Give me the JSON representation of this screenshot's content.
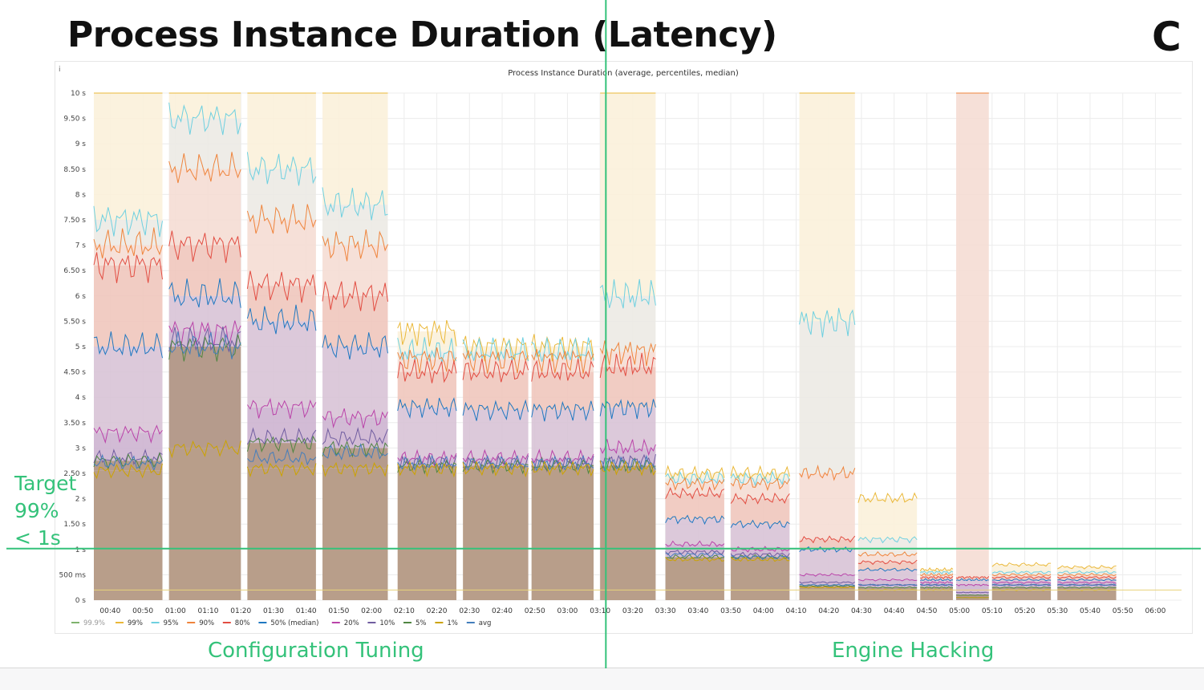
{
  "slide": {
    "title": "Process Instance Duration (Latency)",
    "logo_letter": "C",
    "accent_color": "#ff5a1f",
    "annotation_color": "#34c27a",
    "left_section_label": "Configuration Tuning",
    "right_section_label": "Engine Hacking",
    "target_lines": [
      "Target",
      "99%",
      "< 1s"
    ]
  },
  "chart_data": {
    "type": "area",
    "title": "Process Instance Duration (average, percentiles, median)",
    "panel_info_icon": "i",
    "y_unit": "s",
    "ylim": [
      0,
      10
    ],
    "y_ticks": [
      {
        "v": 10,
        "label": "10 s"
      },
      {
        "v": 9.5,
        "label": "9.50 s"
      },
      {
        "v": 9,
        "label": "9 s"
      },
      {
        "v": 8.5,
        "label": "8.50 s"
      },
      {
        "v": 8,
        "label": "8 s"
      },
      {
        "v": 7.5,
        "label": "7.50 s"
      },
      {
        "v": 7,
        "label": "7 s"
      },
      {
        "v": 6.5,
        "label": "6.50 s"
      },
      {
        "v": 6,
        "label": "6 s"
      },
      {
        "v": 5.5,
        "label": "5.50 s"
      },
      {
        "v": 5,
        "label": "5 s"
      },
      {
        "v": 4.5,
        "label": "4.50 s"
      },
      {
        "v": 4,
        "label": "4 s"
      },
      {
        "v": 3.5,
        "label": "3.50 s"
      },
      {
        "v": 3,
        "label": "3 s"
      },
      {
        "v": 2.5,
        "label": "2.50 s"
      },
      {
        "v": 2,
        "label": "2 s"
      },
      {
        "v": 1.5,
        "label": "1.50 s"
      },
      {
        "v": 1,
        "label": "1 s"
      },
      {
        "v": 0.5,
        "label": "500 ms"
      },
      {
        "v": 0,
        "label": "0 s"
      }
    ],
    "x_range": [
      "00:35",
      "06:08"
    ],
    "x_ticks": [
      "00:40",
      "00:50",
      "01:00",
      "01:10",
      "01:20",
      "01:30",
      "01:40",
      "01:50",
      "02:00",
      "02:10",
      "02:20",
      "02:30",
      "02:40",
      "02:50",
      "03:00",
      "03:10",
      "03:20",
      "03:30",
      "03:40",
      "03:50",
      "04:00",
      "04:10",
      "04:20",
      "04:30",
      "04:40",
      "04:50",
      "05:00",
      "05:10",
      "05:20",
      "05:30",
      "05:40",
      "05:50",
      "06:00"
    ],
    "grid": true,
    "legend_position": "bottom-left",
    "target_threshold": 1,
    "divider_time": "03:12",
    "series": [
      {
        "name": "99.9%",
        "color": "#7eb26d"
      },
      {
        "name": "99%",
        "color": "#eab839"
      },
      {
        "name": "95%",
        "color": "#6ed0e0"
      },
      {
        "name": "90%",
        "color": "#ef843c"
      },
      {
        "name": "80%",
        "color": "#e24d42"
      },
      {
        "name": "50% (median)",
        "color": "#1f78c1"
      },
      {
        "name": "20%",
        "color": "#ba43a9"
      },
      {
        "name": "10%",
        "color": "#705da0"
      },
      {
        "name": "5%",
        "color": "#508642"
      },
      {
        "name": "1%",
        "color": "#cca300"
      },
      {
        "name": "avg",
        "color": "#447ebc"
      }
    ],
    "segments": [
      {
        "start": "00:35",
        "end": "00:56",
        "levels": {
          "avg": 2.7,
          "1%": 2.55,
          "5%": 2.75,
          "10%": 2.8,
          "20%": 3.3,
          "50% (median)": 5.0,
          "80%": 6.6,
          "90%": 7.0,
          "95%": 7.5,
          "99%": 10
        }
      },
      {
        "start": "00:58",
        "end": "01:20",
        "levels": {
          "avg": 5.0,
          "1%": 3.0,
          "5%": 5.0,
          "10%": 5.1,
          "20%": 5.3,
          "50% (median)": 6.0,
          "80%": 7.0,
          "90%": 8.5,
          "95%": 9.5,
          "99%": 10
        }
      },
      {
        "start": "01:22",
        "end": "01:43",
        "levels": {
          "avg": 2.8,
          "1%": 2.6,
          "5%": 3.1,
          "10%": 3.2,
          "20%": 3.8,
          "50% (median)": 5.5,
          "80%": 6.2,
          "90%": 7.5,
          "95%": 8.5,
          "99%": 10
        }
      },
      {
        "start": "01:45",
        "end": "02:05",
        "levels": {
          "avg": 2.9,
          "1%": 2.6,
          "5%": 3.0,
          "10%": 3.2,
          "20%": 3.6,
          "50% (median)": 5.0,
          "80%": 6.0,
          "90%": 7.0,
          "95%": 7.8,
          "99%": 10
        }
      },
      {
        "start": "02:08",
        "end": "02:26",
        "levels": {
          "avg": 2.7,
          "1%": 2.6,
          "5%": 2.65,
          "10%": 2.7,
          "20%": 2.8,
          "50% (median)": 3.8,
          "80%": 4.5,
          "90%": 4.75,
          "95%": 4.9,
          "99%": 5.3
        }
      },
      {
        "start": "02:28",
        "end": "02:48",
        "levels": {
          "avg": 2.7,
          "1%": 2.6,
          "5%": 2.65,
          "10%": 2.7,
          "20%": 2.8,
          "50% (median)": 3.75,
          "80%": 4.5,
          "90%": 4.75,
          "95%": 4.9,
          "99%": 5.0
        }
      },
      {
        "start": "02:49",
        "end": "03:08",
        "levels": {
          "avg": 2.7,
          "1%": 2.6,
          "5%": 2.65,
          "10%": 2.7,
          "20%": 2.8,
          "50% (median)": 3.75,
          "80%": 4.5,
          "90%": 4.75,
          "95%": 4.9,
          "99%": 5.0
        }
      },
      {
        "start": "03:10",
        "end": "03:27",
        "levels": {
          "avg": 2.7,
          "1%": 2.6,
          "5%": 2.65,
          "10%": 2.75,
          "20%": 3.0,
          "50% (median)": 3.8,
          "80%": 4.6,
          "90%": 4.9,
          "95%": 6.0,
          "99%": 10
        }
      },
      {
        "start": "03:30",
        "end": "03:48",
        "levels": {
          "avg": 0.9,
          "1%": 0.8,
          "5%": 0.85,
          "10%": 0.95,
          "20%": 1.1,
          "50% (median)": 1.6,
          "80%": 2.1,
          "90%": 2.3,
          "95%": 2.4,
          "99%": 2.5
        }
      },
      {
        "start": "03:50",
        "end": "04:08",
        "levels": {
          "avg": 0.85,
          "1%": 0.8,
          "5%": 0.85,
          "10%": 0.9,
          "20%": 1.0,
          "50% (median)": 1.5,
          "80%": 2.0,
          "90%": 2.3,
          "95%": 2.4,
          "99%": 2.5
        }
      },
      {
        "start": "04:11",
        "end": "04:28",
        "levels": {
          "avg": 0.3,
          "1%": 0.25,
          "5%": 0.28,
          "10%": 0.35,
          "20%": 0.5,
          "50% (median)": 1.0,
          "80%": 1.2,
          "90%": 2.5,
          "95%": 5.5,
          "99%": 10
        }
      },
      {
        "start": "04:29",
        "end": "04:47",
        "levels": {
          "avg": 0.3,
          "1%": 0.2,
          "5%": 0.25,
          "10%": 0.3,
          "20%": 0.4,
          "50% (median)": 0.6,
          "80%": 0.75,
          "90%": 0.9,
          "95%": 1.2,
          "99%": 2.0
        }
      },
      {
        "start": "04:48",
        "end": "04:58",
        "levels": {
          "avg": 0.3,
          "1%": 0.2,
          "5%": 0.25,
          "10%": 0.3,
          "20%": 0.35,
          "50% (median)": 0.4,
          "80%": 0.45,
          "90%": 0.5,
          "95%": 0.55,
          "99%": 0.6
        }
      },
      {
        "start": "04:59",
        "end": "05:09",
        "levels": {
          "avg": 0.05,
          "1%": 0.05,
          "5%": 0.1,
          "10%": 0.15,
          "20%": 0.3,
          "50% (median)": 0.4,
          "80%": 0.45,
          "90%": 10,
          "95%": 10,
          "99%": 10
        }
      },
      {
        "start": "05:10",
        "end": "05:28",
        "levels": {
          "avg": 0.3,
          "1%": 0.2,
          "5%": 0.25,
          "10%": 0.3,
          "20%": 0.35,
          "50% (median)": 0.4,
          "80%": 0.45,
          "90%": 0.5,
          "95%": 0.55,
          "99%": 0.7
        }
      },
      {
        "start": "05:30",
        "end": "05:48",
        "levels": {
          "avg": 0.3,
          "1%": 0.2,
          "5%": 0.25,
          "10%": 0.3,
          "20%": 0.35,
          "50% (median)": 0.4,
          "80%": 0.45,
          "90%": 0.5,
          "95%": 0.55,
          "99%": 0.65
        }
      }
    ]
  }
}
